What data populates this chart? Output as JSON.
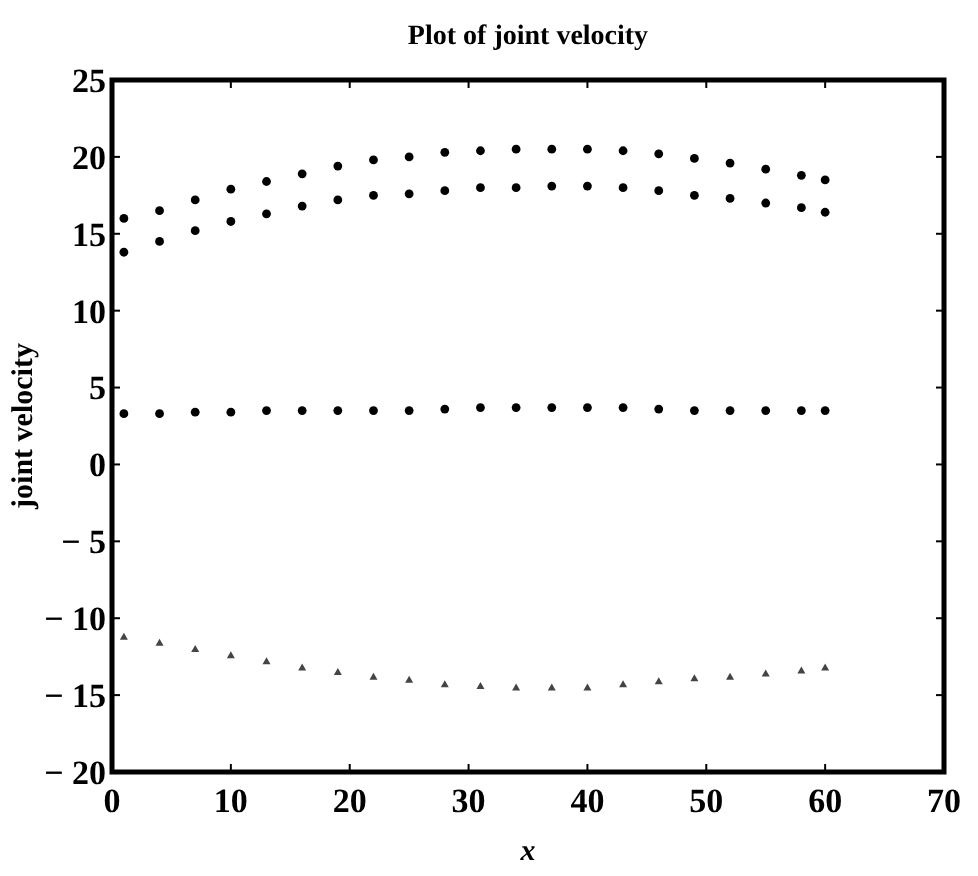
{
  "chart_data": {
    "type": "scatter",
    "title": "Plot of joint velocity",
    "xlabel": "x",
    "ylabel": "joint velocity",
    "xlim": [
      0,
      70
    ],
    "xticks": [
      0,
      10,
      20,
      30,
      40,
      50,
      60,
      70
    ],
    "ylim": [
      -20,
      25
    ],
    "yticks": [
      {
        "value": -20,
        "label": "− 20"
      },
      {
        "value": -15,
        "label": "− 15"
      },
      {
        "value": -10,
        "label": "− 10"
      },
      {
        "value": -5,
        "label": "− 5"
      },
      0,
      5,
      10,
      15,
      20,
      25
    ],
    "grid": false,
    "x": [
      1,
      4,
      7,
      10,
      13,
      16,
      19,
      22,
      25,
      28,
      31,
      34,
      37,
      40,
      43,
      46,
      49,
      52,
      55,
      58,
      60
    ],
    "series": [
      {
        "color": "#000000",
        "marker": "circle",
        "values": [
          16.0,
          16.5,
          17.2,
          17.9,
          18.4,
          18.9,
          19.4,
          19.8,
          20.0,
          20.3,
          20.4,
          20.5,
          20.5,
          20.5,
          20.4,
          20.2,
          19.9,
          19.6,
          19.2,
          18.8,
          18.5
        ]
      },
      {
        "color": "#000000",
        "marker": "circle",
        "values": [
          13.8,
          14.5,
          15.2,
          15.8,
          16.3,
          16.8,
          17.2,
          17.5,
          17.6,
          17.8,
          18.0,
          18.0,
          18.1,
          18.1,
          18.0,
          17.8,
          17.5,
          17.3,
          17.0,
          16.7,
          16.4
        ]
      },
      {
        "color": "#000000",
        "marker": "circle",
        "values": [
          3.3,
          3.3,
          3.4,
          3.4,
          3.5,
          3.5,
          3.5,
          3.5,
          3.5,
          3.6,
          3.7,
          3.7,
          3.7,
          3.7,
          3.7,
          3.6,
          3.5,
          3.5,
          3.5,
          3.5,
          3.5
        ]
      },
      {
        "color": "#444444",
        "marker": "triangle",
        "values": [
          -11.2,
          -11.6,
          -12.0,
          -12.4,
          -12.8,
          -13.2,
          -13.5,
          -13.8,
          -14.0,
          -14.3,
          -14.4,
          -14.5,
          -14.5,
          -14.5,
          -14.3,
          -14.1,
          -13.9,
          -13.8,
          -13.6,
          -13.4,
          -13.2
        ]
      }
    ]
  }
}
